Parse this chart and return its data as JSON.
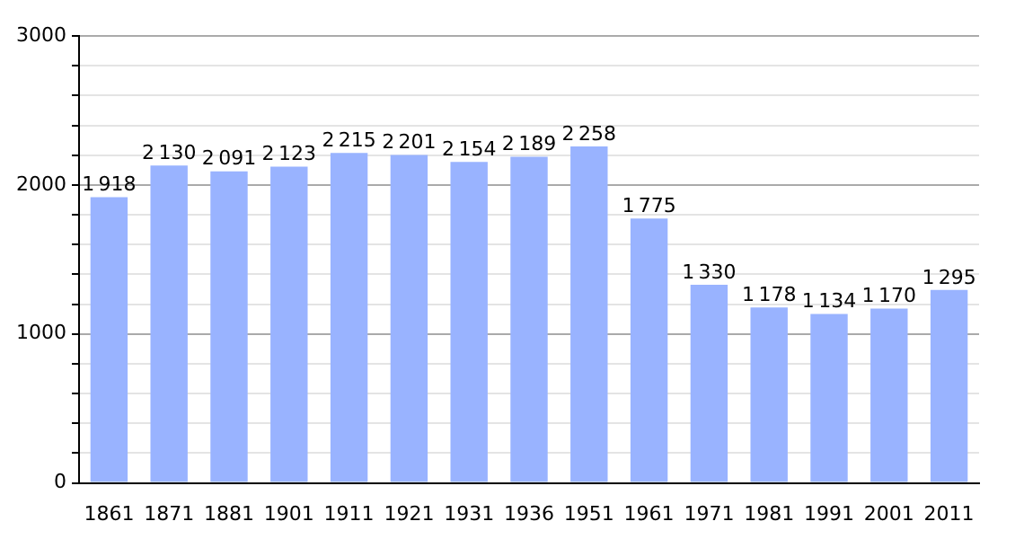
{
  "chart_data": {
    "type": "bar",
    "categories": [
      "1861",
      "1871",
      "1881",
      "1901",
      "1911",
      "1921",
      "1931",
      "1936",
      "1951",
      "1961",
      "1971",
      "1981",
      "1991",
      "2001",
      "2011"
    ],
    "values": [
      1918,
      2130,
      2091,
      2123,
      2215,
      2201,
      2154,
      2189,
      2258,
      1775,
      1330,
      1178,
      1134,
      1170,
      1295
    ],
    "value_labels": [
      "1 918",
      "2 130",
      "2 091",
      "2 123",
      "2 215",
      "2 201",
      "2 154",
      "2 189",
      "2 258",
      "1 775",
      "1 330",
      "1 178",
      "1 134",
      "1 170",
      "1 295"
    ],
    "color": "#99b3ff",
    "ylim": [
      0,
      3000
    ],
    "yticks": [
      0,
      {
        "value": 200,
        "label": null
      },
      {
        "value": 400,
        "label": null
      },
      {
        "value": 600,
        "label": null
      },
      {
        "value": 800,
        "label": null
      },
      1000,
      {
        "value": 1200,
        "label": null
      },
      {
        "value": 1400,
        "label": null
      },
      {
        "value": 1600,
        "label": null
      },
      {
        "value": 1800,
        "label": null
      },
      2000,
      {
        "value": 2200,
        "label": null
      },
      {
        "value": 2400,
        "label": null
      },
      {
        "value": 2600,
        "label": null
      },
      {
        "value": 2800,
        "label": null
      },
      3000
    ],
    "grid": "y"
  }
}
